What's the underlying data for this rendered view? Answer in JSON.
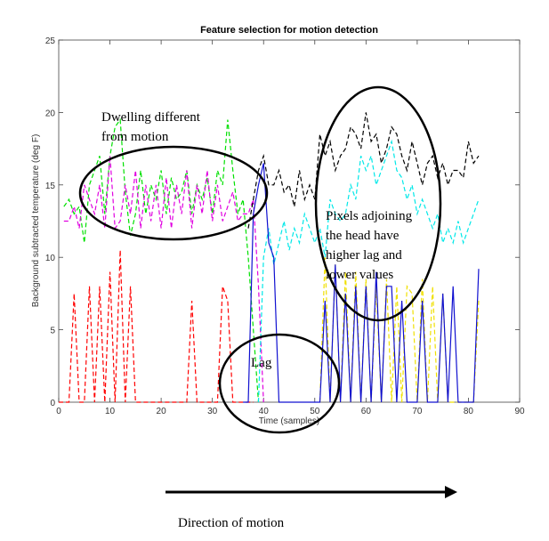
{
  "chart_data": {
    "type": "line",
    "title": "Feature selection for motion detection",
    "xlabel": "Time (samples)",
    "ylabel": "Background subtracted temperature (deg F)",
    "xlim": [
      0,
      90
    ],
    "ylim": [
      0,
      25
    ],
    "xticks": [
      "0",
      "10",
      "20",
      "30",
      "40",
      "50",
      "60",
      "70",
      "80",
      "90"
    ],
    "yticks": [
      "0",
      "5",
      "10",
      "15",
      "20",
      "25"
    ],
    "grid": false,
    "series": [
      {
        "color": "#00e000",
        "style": "dashed",
        "x": [
          1,
          2,
          3,
          4,
          5,
          6,
          7,
          8,
          9,
          10,
          11,
          12,
          13,
          14,
          15,
          16,
          17,
          18,
          19,
          20,
          21,
          22,
          23,
          24,
          25,
          26,
          27,
          28,
          29,
          30,
          31,
          32,
          33,
          34,
          35,
          36,
          37,
          38,
          39
        ],
        "values": [
          13.5,
          14,
          13,
          13.5,
          11,
          15,
          16,
          17,
          13,
          17,
          19,
          19.5,
          14.5,
          11.5,
          13,
          16,
          13,
          15,
          14,
          16,
          13,
          15.5,
          14,
          14.5,
          16,
          13,
          15,
          14,
          15.5,
          13,
          16,
          15,
          19.5,
          16,
          13,
          14,
          10,
          5,
          0
        ]
      },
      {
        "color": "#e000e0",
        "style": "dashed",
        "x": [
          1,
          2,
          3,
          4,
          5,
          6,
          7,
          8,
          9,
          10,
          11,
          12,
          13,
          14,
          15,
          16,
          17,
          18,
          19,
          20,
          21,
          22,
          23,
          24,
          25,
          26,
          27,
          28,
          29,
          30,
          31,
          32,
          33,
          34,
          35,
          36,
          37,
          38,
          39,
          40
        ],
        "values": [
          12.5,
          12.5,
          13.5,
          12,
          15,
          14,
          13,
          15,
          12,
          17,
          12,
          12.5,
          15,
          13,
          16,
          12,
          15,
          12.5,
          15,
          12,
          15.5,
          12,
          15,
          13,
          16,
          12,
          15,
          13,
          16,
          12.5,
          15,
          12.5,
          13.5,
          14.5,
          12.5,
          13,
          13,
          14,
          8,
          0
        ]
      },
      {
        "color": "#ff0000",
        "style": "dashed",
        "x": [
          0,
          1,
          2,
          3,
          4,
          5,
          6,
          7,
          8,
          9,
          10,
          11,
          12,
          13,
          14,
          15,
          16,
          17,
          18,
          19,
          20,
          21,
          22,
          23,
          24,
          25,
          26,
          27,
          28,
          29,
          30,
          31,
          32,
          33,
          34,
          35,
          36,
          37,
          38
        ],
        "values": [
          0,
          0,
          0,
          7.5,
          0,
          0,
          8,
          0,
          8,
          0,
          9,
          0,
          10.5,
          0,
          8,
          0,
          0,
          0,
          0,
          0,
          0,
          0,
          0,
          0,
          0,
          0,
          7,
          0,
          0,
          0,
          0,
          0,
          8,
          7,
          0,
          0,
          0,
          0,
          0
        ]
      },
      {
        "color": "#000000",
        "style": "dashed",
        "x": [
          37,
          38,
          39,
          40,
          41,
          42,
          43,
          44,
          45,
          46,
          47,
          48,
          49,
          50,
          51,
          52,
          53,
          54,
          55,
          56,
          57,
          58,
          59,
          60,
          61,
          62,
          63,
          64,
          65,
          66,
          67,
          68,
          69,
          70,
          71,
          72,
          73,
          74,
          75,
          76,
          77,
          78,
          79,
          80,
          81,
          82
        ],
        "values": [
          12,
          14,
          16,
          17,
          15,
          15,
          16,
          14.5,
          15,
          13.5,
          16,
          14,
          15,
          14,
          18.5,
          17,
          18,
          16,
          17,
          17.5,
          19,
          18.5,
          17.5,
          20,
          18,
          18.5,
          16.5,
          17.5,
          19,
          18.5,
          17,
          16,
          18,
          16.5,
          15,
          16.5,
          17,
          15.5,
          16.5,
          15,
          16,
          16,
          15.5,
          18,
          16.5,
          17
        ]
      },
      {
        "color": "#00e8e8",
        "style": "dashed",
        "x": [
          39,
          40,
          41,
          42,
          43,
          44,
          45,
          46,
          47,
          48,
          49,
          50,
          51,
          52,
          53,
          54,
          55,
          56,
          57,
          58,
          59,
          60,
          61,
          62,
          63,
          64,
          65,
          66,
          67,
          68,
          69,
          70,
          71,
          72,
          73,
          74,
          75,
          76,
          77,
          78,
          79,
          80,
          81,
          82
        ],
        "values": [
          0,
          10,
          12,
          9.5,
          11,
          12.5,
          10.5,
          12,
          11,
          13,
          12,
          11,
          12,
          10,
          14,
          13,
          12.5,
          13,
          15,
          14,
          17,
          16,
          17,
          15,
          16,
          17,
          18,
          16,
          15.5,
          14,
          15,
          13,
          14,
          13,
          12,
          13,
          11,
          12,
          11,
          12.5,
          11,
          12,
          13,
          14
        ]
      },
      {
        "color": "#f0e000",
        "style": "dashed",
        "x": [
          51,
          52,
          53,
          54,
          55,
          56,
          57,
          58,
          59,
          60,
          61,
          62,
          63,
          64,
          65,
          66,
          67,
          68,
          69,
          70,
          71,
          72,
          73,
          74,
          75,
          76,
          77,
          78,
          79,
          80,
          81,
          82
        ],
        "values": [
          0,
          10,
          0,
          9.5,
          0,
          9,
          0,
          9,
          0,
          8.5,
          0,
          8,
          0,
          8.5,
          0,
          8,
          0,
          8,
          7.5,
          0,
          8.5,
          0,
          8,
          0,
          7.5,
          0,
          0,
          0,
          0,
          0,
          0,
          7
        ]
      },
      {
        "color": "#1010d0",
        "style": "solid",
        "x": [
          36,
          37,
          38,
          39,
          40,
          41,
          42,
          43,
          44,
          45,
          46,
          47,
          48,
          49,
          50,
          51,
          52,
          53,
          54,
          55,
          56,
          57,
          58,
          59,
          60,
          61,
          62,
          63,
          64,
          65,
          66,
          67,
          68,
          69,
          70,
          71,
          72,
          73,
          74,
          75,
          76,
          77,
          78,
          79,
          80,
          81,
          82
        ],
        "values": [
          0,
          0,
          13,
          15,
          16.5,
          11,
          10,
          0,
          0,
          0,
          0,
          0,
          0,
          0,
          0,
          0,
          7,
          0,
          9.5,
          0,
          7.5,
          0,
          8,
          0,
          8,
          0,
          9,
          0,
          8,
          8,
          0,
          7,
          0,
          0,
          0,
          7,
          0,
          0,
          0,
          7.5,
          0,
          8,
          0,
          0,
          0,
          0,
          9.2
        ]
      }
    ],
    "annotations": [
      "Dwelling different",
      "from motion",
      "Lag",
      "Pixels adjoining",
      "the head have",
      "higher lag and",
      "lower values",
      "Direction of motion"
    ]
  }
}
